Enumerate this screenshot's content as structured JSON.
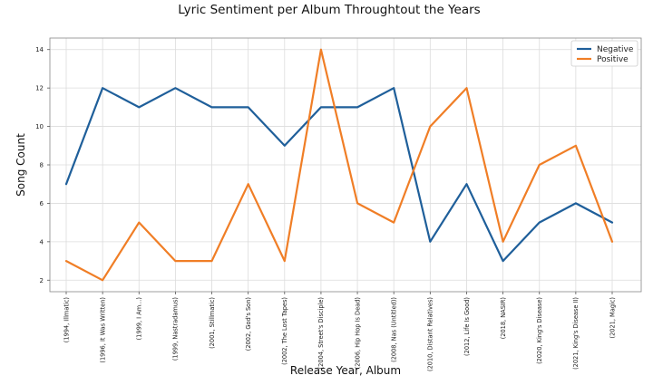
{
  "chart_data": {
    "type": "line",
    "title": "Lyric Sentiment per Album Throughtout the Years",
    "xlabel": "Release Year, Album",
    "ylabel": "Song Count",
    "categories": [
      "(1994, Illmatic)",
      "(1996, It Was Written)",
      "(1999, I Am...)",
      "(1999, Nastradamus)",
      "(2001, Stillmatic)",
      "(2002, God's Son)",
      "(2002, The Lost Tapes)",
      "(2004, Street's Disciple)",
      "(2006, Hip Hop Is Dead)",
      "(2008, Nas (Untitled))",
      "(2010, Distant Relatives)",
      "(2012, Life Is Good)",
      "(2018, NASIR)",
      "(2020, King's Disease)",
      "(2021, King's Disease II)",
      "(2021, Magic)"
    ],
    "series": [
      {
        "name": "Negative",
        "color": "#1f5f9a",
        "values": [
          7,
          12,
          11,
          12,
          11,
          11,
          9,
          11,
          11,
          12,
          4,
          7,
          3,
          5,
          6,
          5
        ]
      },
      {
        "name": "Positive",
        "color": "#f07e26",
        "values": [
          3,
          2,
          5,
          3,
          3,
          7,
          3,
          14,
          6,
          5,
          10,
          12,
          4,
          8,
          9,
          4
        ]
      }
    ],
    "ylim": [
      1.4,
      14.6
    ],
    "yticks": [
      2,
      4,
      6,
      8,
      10,
      12,
      14
    ],
    "grid": true,
    "legend": "top-right"
  }
}
